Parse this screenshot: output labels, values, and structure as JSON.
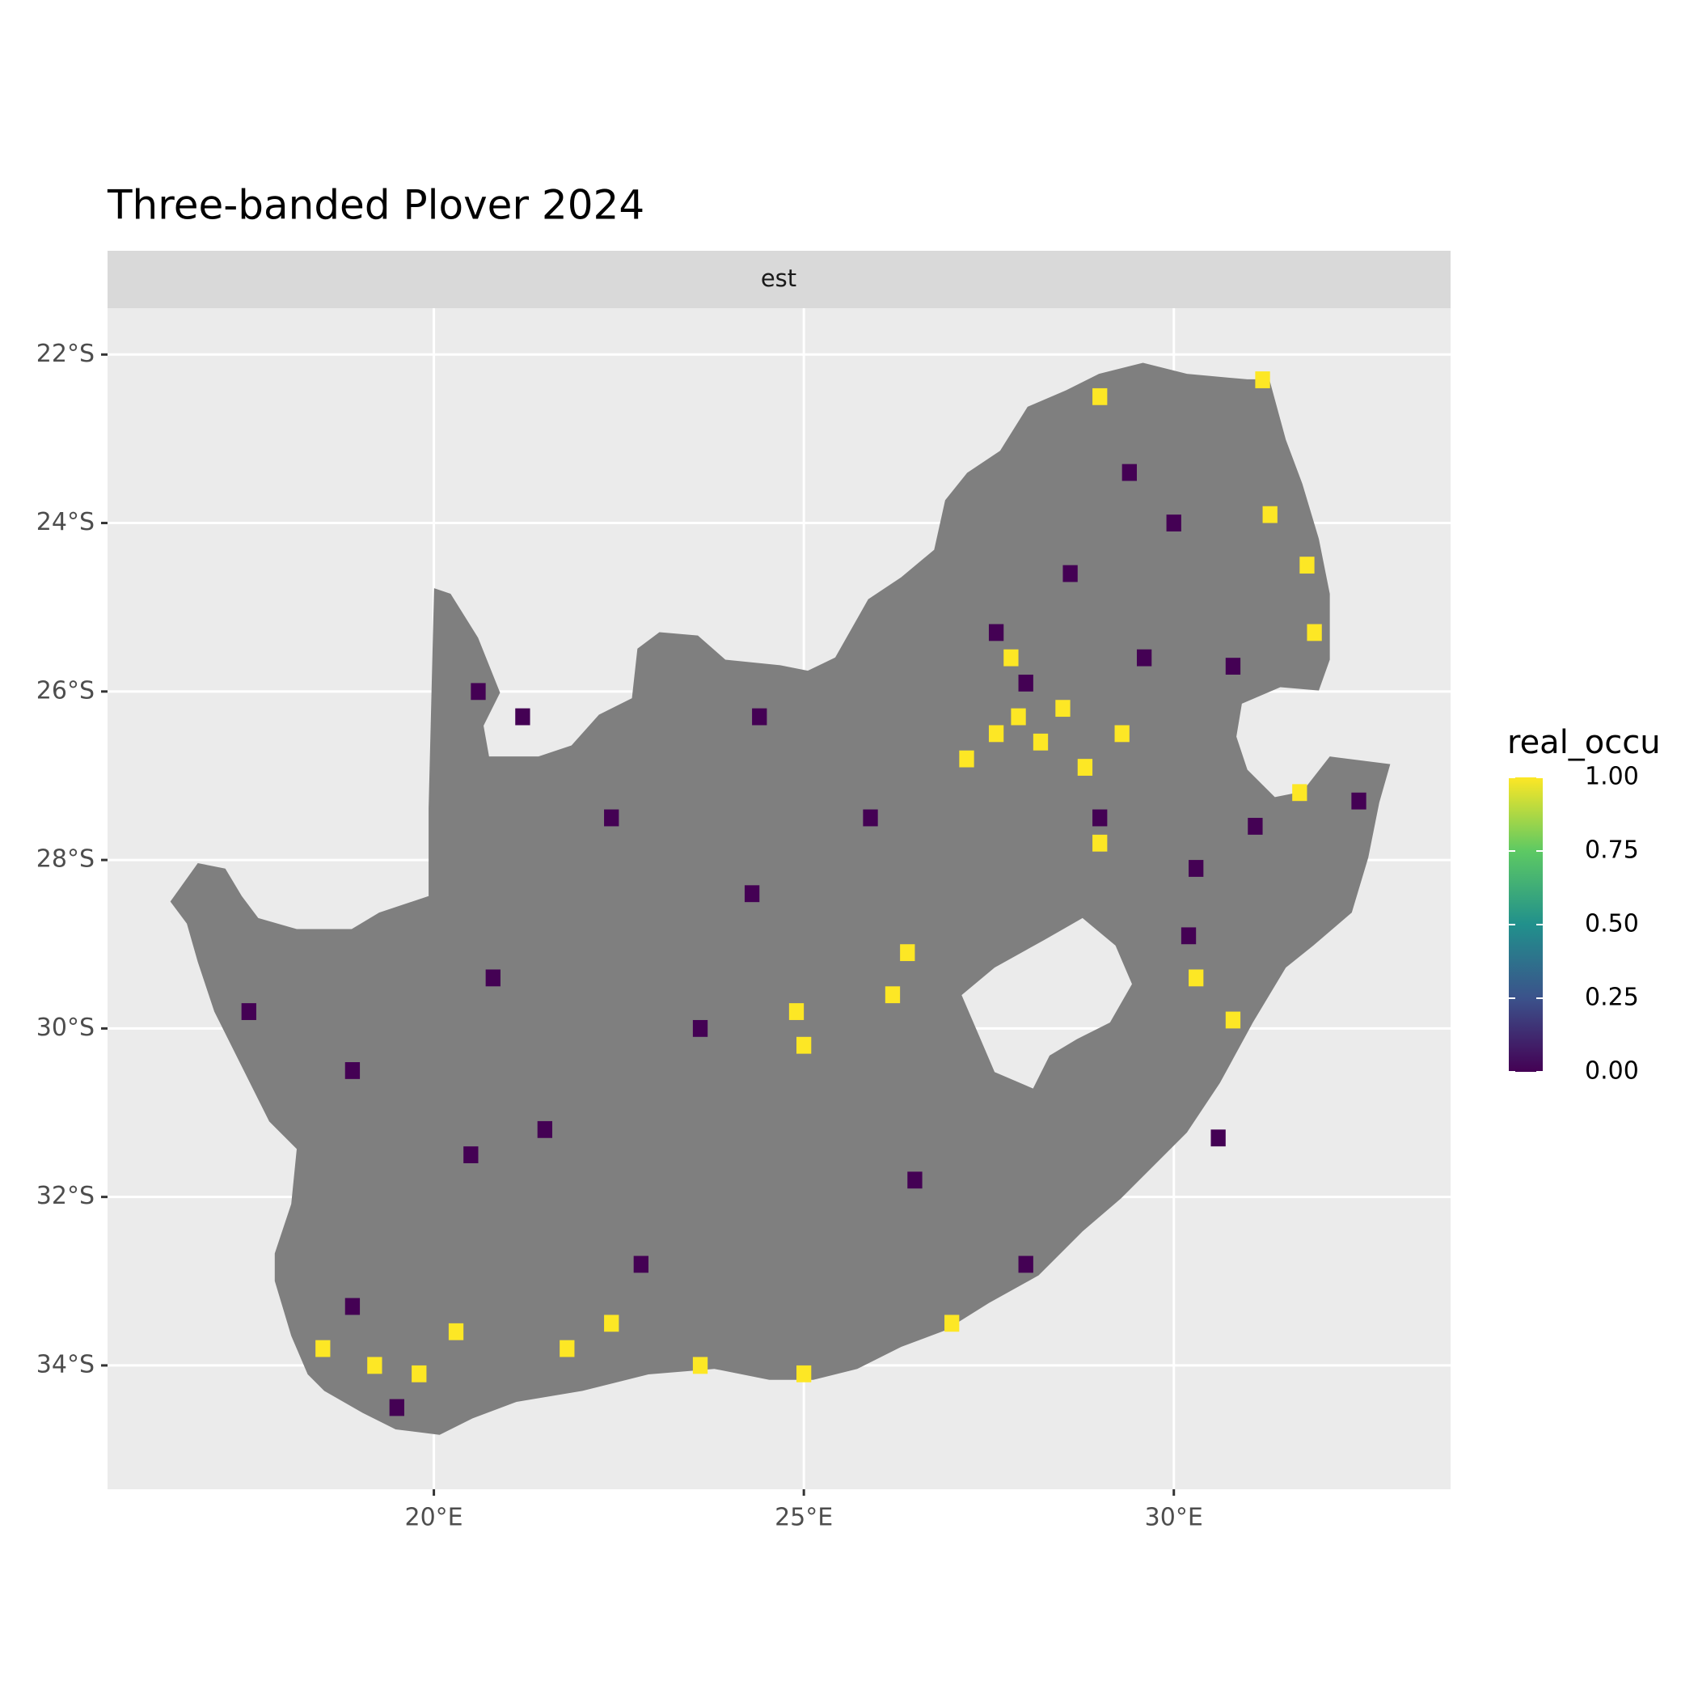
{
  "chart_data": {
    "type": "tile",
    "title": "Three-banded Plover 2024",
    "facet": "est",
    "xlim": [
      15.59,
      33.74
    ],
    "ylim": [
      -35.47,
      -21.45
    ],
    "xticks": [
      {
        "value": 20,
        "label": "20°E"
      },
      {
        "value": 25,
        "label": "25°E"
      },
      {
        "value": 30,
        "label": "30°E"
      }
    ],
    "yticks": [
      {
        "value": -22,
        "label": "22°S"
      },
      {
        "value": -24,
        "label": "24°S"
      },
      {
        "value": -26,
        "label": "26°S"
      },
      {
        "value": -28,
        "label": "28°S"
      },
      {
        "value": -30,
        "label": "30°S"
      },
      {
        "value": -32,
        "label": "32°S"
      },
      {
        "value": -34,
        "label": "34°S"
      }
    ],
    "grid": true,
    "x": [
      27.6,
      27.9,
      28.2,
      28.5,
      27.2,
      27.8,
      28.8,
      29.3,
      31.8,
      31.9,
      31.3,
      31.2,
      29.0,
      26.2,
      26.4,
      25.0,
      24.9,
      20.3,
      19.8,
      19.2,
      18.5,
      21.8,
      22.4,
      25.0,
      30.3,
      30.8,
      31.7,
      29.0,
      23.6,
      27.0,
      28.0,
      27.6,
      28.6,
      30.0,
      29.6,
      30.8,
      29.0,
      30.3,
      31.1,
      32.5,
      19.5,
      18.9,
      20.8,
      18.9,
      17.5,
      24.3,
      25.9,
      22.4,
      23.6,
      21.5,
      20.5,
      22.8,
      28.0,
      30.6,
      26.5,
      21.2,
      20.6,
      24.4,
      29.4,
      30.2
    ],
    "y": [
      -26.5,
      -26.3,
      -26.6,
      -26.2,
      -26.8,
      -25.6,
      -26.9,
      -26.5,
      -24.5,
      -25.3,
      -23.9,
      -22.3,
      -22.5,
      -29.6,
      -29.1,
      -30.2,
      -29.8,
      -33.6,
      -34.1,
      -34.0,
      -33.8,
      -33.8,
      -33.5,
      -34.1,
      -29.4,
      -29.9,
      -27.2,
      -27.8,
      -34.0,
      -33.5,
      -25.9,
      -25.3,
      -24.6,
      -24.0,
      -25.6,
      -25.7,
      -27.5,
      -28.1,
      -27.6,
      -27.3,
      -34.5,
      -33.3,
      -29.4,
      -30.5,
      -29.8,
      -28.4,
      -27.5,
      -27.5,
      -30.0,
      -31.2,
      -31.5,
      -32.8,
      -32.8,
      -31.3,
      -31.8,
      -26.3,
      -26.0,
      -26.3,
      -23.4,
      -28.9
    ],
    "values": [
      1,
      1,
      1,
      1,
      1,
      1,
      1,
      1,
      1,
      1,
      1,
      1,
      1,
      1,
      1,
      1,
      1,
      1,
      1,
      1,
      1,
      1,
      1,
      1,
      1,
      1,
      1,
      1,
      1,
      1,
      0,
      0,
      0,
      0,
      0,
      0,
      0,
      0,
      0,
      0,
      0,
      0,
      0,
      0,
      0,
      0,
      0,
      0,
      0,
      0,
      0,
      0,
      0,
      0,
      0,
      0,
      0,
      0,
      0,
      0
    ],
    "legend": {
      "title": "real_occu",
      "clim": [
        0,
        1
      ],
      "ticks": [
        {
          "value": 0,
          "label": "0.00"
        },
        {
          "value": 0.25,
          "label": "0.25"
        },
        {
          "value": 0.5,
          "label": "0.50"
        },
        {
          "value": 0.75,
          "label": "0.75"
        },
        {
          "value": 1,
          "label": "1.00"
        }
      ],
      "colors": [
        "#440154",
        "#3b528b",
        "#21908c",
        "#5dc963",
        "#fde725"
      ]
    }
  }
}
